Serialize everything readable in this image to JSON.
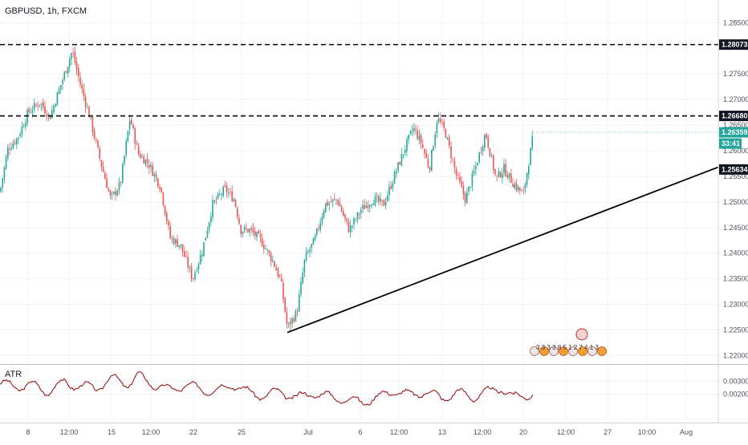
{
  "chart_title": "GBPUSD, 1h, FXCM",
  "indicator_label": "ATR",
  "colors": {
    "up": "#26a69a",
    "down": "#ef5350",
    "atr": "#990000",
    "line": "#000000",
    "grid": "#f0f3fa",
    "current_tag": "#26a69a",
    "level_tag": "#131722"
  },
  "price_axis": {
    "ylim": [
      1.2185,
      1.2885
    ],
    "ticks": [
      "1.28500",
      "1.27500",
      "1.27000",
      "1.26500",
      "1.26000",
      "1.25500",
      "1.25000",
      "1.24500",
      "1.24000",
      "1.23500",
      "1.23000",
      "1.22500",
      "1.22000"
    ]
  },
  "atr_axis": {
    "ylim": [
      0,
      0.0042
    ],
    "ticks": [
      "0.00300",
      "0.00200"
    ]
  },
  "time_axis": {
    "labels": [
      "8",
      "12:00",
      "15",
      "12:00",
      "22",
      "25",
      "Jul",
      "6",
      "12:00",
      "13",
      "12:00",
      "20",
      "12:00",
      "27",
      "10:00",
      "Aug"
    ]
  },
  "levels": [
    {
      "label": "1.28073",
      "value": 1.28073,
      "style": "dashed"
    },
    {
      "label": "1.26680",
      "value": 1.2668,
      "style": "dashed"
    },
    {
      "label": "1.25634",
      "value": 1.25634,
      "style": "trendline"
    }
  ],
  "current_price": {
    "label": "1.26359",
    "value": 1.26359,
    "countdown": "33:41"
  },
  "events": {
    "text": "3 3 3 3 8 5 1 2 7 4 1 3"
  },
  "chart_data": {
    "type": "candlestick",
    "title": "GBPUSD, 1h, FXCM",
    "x_labels": [
      "8",
      "12:00",
      "15",
      "12:00",
      "22",
      "25",
      "Jul",
      "6",
      "12:00",
      "13",
      "12:00",
      "20",
      "12:00",
      "27",
      "10:00",
      "Aug"
    ],
    "ylim": [
      1.2185,
      1.2885
    ],
    "close_path": [
      [
        0,
        1.252
      ],
      [
        10,
        1.2605
      ],
      [
        22,
        1.2625
      ],
      [
        35,
        1.2675
      ],
      [
        50,
        1.2695
      ],
      [
        62,
        1.2665
      ],
      [
        75,
        1.2725
      ],
      [
        90,
        1.2795
      ],
      [
        100,
        1.273
      ],
      [
        112,
        1.2665
      ],
      [
        125,
        1.258
      ],
      [
        138,
        1.2505
      ],
      [
        150,
        1.2535
      ],
      [
        162,
        1.2665
      ],
      [
        172,
        1.2595
      ],
      [
        185,
        1.2575
      ],
      [
        200,
        1.253
      ],
      [
        212,
        1.243
      ],
      [
        225,
        1.2415
      ],
      [
        240,
        1.235
      ],
      [
        252,
        1.2405
      ],
      [
        265,
        1.2495
      ],
      [
        280,
        1.2525
      ],
      [
        292,
        1.2505
      ],
      [
        300,
        1.2445
      ],
      [
        312,
        1.2445
      ],
      [
        325,
        1.2425
      ],
      [
        340,
        1.2385
      ],
      [
        350,
        1.2345
      ],
      [
        358,
        1.2255
      ],
      [
        370,
        1.2285
      ],
      [
        380,
        1.239
      ],
      [
        392,
        1.2425
      ],
      [
        405,
        1.2495
      ],
      [
        420,
        1.2505
      ],
      [
        435,
        1.2445
      ],
      [
        450,
        1.2485
      ],
      [
        465,
        1.2505
      ],
      [
        478,
        1.2495
      ],
      [
        490,
        1.2545
      ],
      [
        502,
        1.2595
      ],
      [
        515,
        1.2645
      ],
      [
        525,
        1.2615
      ],
      [
        535,
        1.2565
      ],
      [
        545,
        1.2665
      ],
      [
        555,
        1.2635
      ],
      [
        568,
        1.2555
      ],
      [
        580,
        1.2505
      ],
      [
        592,
        1.2565
      ],
      [
        605,
        1.2635
      ],
      [
        618,
        1.2545
      ],
      [
        628,
        1.2565
      ],
      [
        640,
        1.2535
      ],
      [
        652,
        1.2515
      ],
      [
        665,
        1.2636
      ]
    ],
    "atr_path": [
      [
        0,
        0.0028
      ],
      [
        20,
        0.0026
      ],
      [
        40,
        0.0027
      ],
      [
        60,
        0.0022
      ],
      [
        80,
        0.0029
      ],
      [
        100,
        0.0026
      ],
      [
        120,
        0.0025
      ],
      [
        140,
        0.0032
      ],
      [
        160,
        0.0028
      ],
      [
        172,
        0.0034
      ],
      [
        190,
        0.0028
      ],
      [
        210,
        0.0023
      ],
      [
        230,
        0.0027
      ],
      [
        250,
        0.0024
      ],
      [
        270,
        0.0022
      ],
      [
        290,
        0.0028
      ],
      [
        310,
        0.0021
      ],
      [
        330,
        0.0019
      ],
      [
        350,
        0.0022
      ],
      [
        370,
        0.0017
      ],
      [
        390,
        0.0021
      ],
      [
        410,
        0.0018
      ],
      [
        430,
        0.0016
      ],
      [
        450,
        0.0014
      ],
      [
        470,
        0.0017
      ],
      [
        490,
        0.0023
      ],
      [
        510,
        0.0019
      ],
      [
        530,
        0.0022
      ],
      [
        550,
        0.0017
      ],
      [
        570,
        0.0021
      ],
      [
        590,
        0.0018
      ],
      [
        610,
        0.0022
      ],
      [
        625,
        0.0025
      ],
      [
        640,
        0.0017
      ],
      [
        665,
        0.0021
      ]
    ],
    "atr_ylim": [
      0,
      0.0042
    ],
    "trendline": {
      "from": [
        358,
        1.2245
      ],
      "to": [
        895,
        1.2568
      ]
    }
  }
}
